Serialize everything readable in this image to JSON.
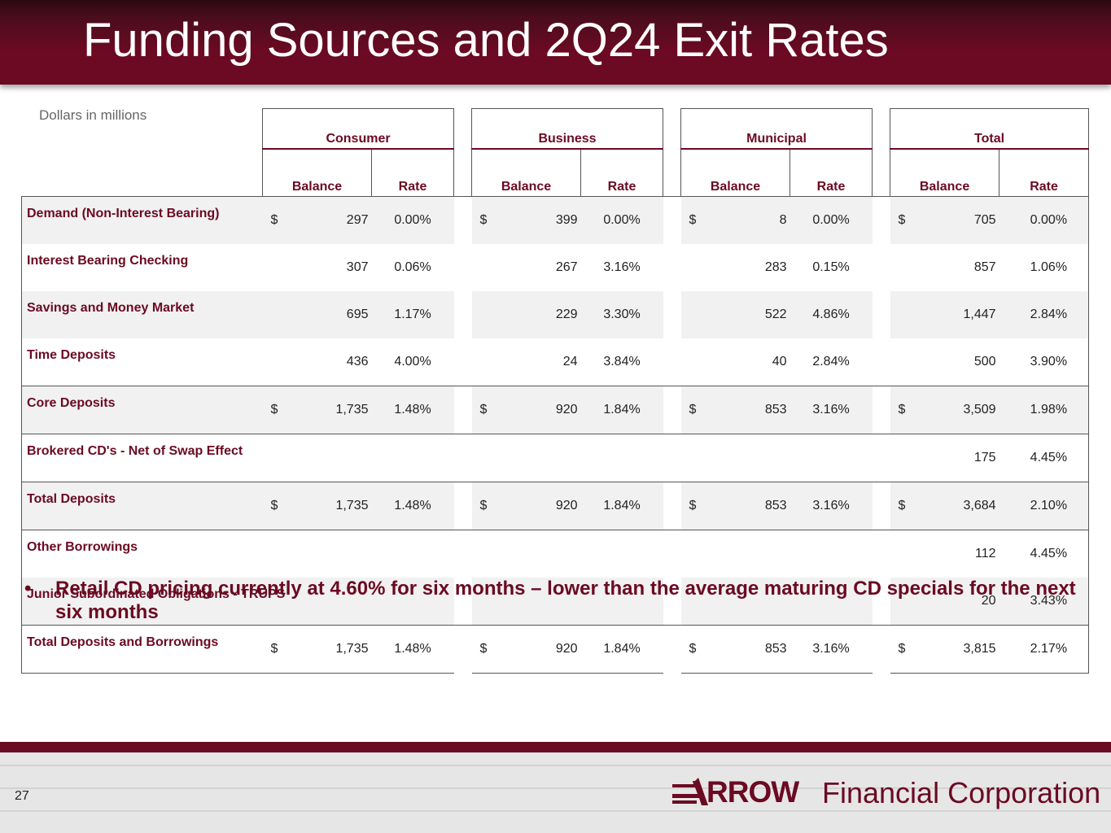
{
  "header": {
    "title": "Funding Sources and 2Q24 Exit Rates"
  },
  "table": {
    "units_note": "Dollars in millions",
    "groups": [
      "Consumer",
      "Business",
      "Municipal",
      "Total"
    ],
    "subheaders": {
      "balance": "Balance",
      "rate": "Rate"
    },
    "rows": [
      {
        "label": "Demand (Non-Interest Bearing)",
        "cells": [
          [
            "$",
            "297",
            "0.00%"
          ],
          [
            "$",
            "399",
            "0.00%"
          ],
          [
            "$",
            "8",
            "0.00%"
          ],
          [
            "$",
            "705",
            "0.00%"
          ]
        ]
      },
      {
        "label": "Interest Bearing Checking",
        "cells": [
          [
            "",
            "307",
            "0.06%"
          ],
          [
            "",
            "267",
            "3.16%"
          ],
          [
            "",
            "283",
            "0.15%"
          ],
          [
            "",
            "857",
            "1.06%"
          ]
        ]
      },
      {
        "label": "Savings and Money Market",
        "cells": [
          [
            "",
            "695",
            "1.17%"
          ],
          [
            "",
            "229",
            "3.30%"
          ],
          [
            "",
            "522",
            "4.86%"
          ],
          [
            "",
            "1,447",
            "2.84%"
          ]
        ]
      },
      {
        "label": "Time Deposits",
        "cells": [
          [
            "",
            "436",
            "4.00%"
          ],
          [
            "",
            "24",
            "3.84%"
          ],
          [
            "",
            "40",
            "2.84%"
          ],
          [
            "",
            "500",
            "3.90%"
          ]
        ]
      },
      {
        "label": "Core Deposits",
        "cells": [
          [
            "$",
            "1,735",
            "1.48%"
          ],
          [
            "$",
            "920",
            "1.84%"
          ],
          [
            "$",
            "853",
            "3.16%"
          ],
          [
            "$",
            "3,509",
            "1.98%"
          ]
        ]
      },
      {
        "label": "Brokered CD's - Net of Swap Effect",
        "cells": [
          [
            "",
            "",
            ""
          ],
          [
            "",
            "",
            ""
          ],
          [
            "",
            "",
            ""
          ],
          [
            "",
            "175",
            "4.45%"
          ]
        ]
      },
      {
        "label": "Total Deposits",
        "cells": [
          [
            "$",
            "1,735",
            "1.48%"
          ],
          [
            "$",
            "920",
            "1.84%"
          ],
          [
            "$",
            "853",
            "3.16%"
          ],
          [
            "$",
            "3,684",
            "2.10%"
          ]
        ]
      },
      {
        "label": "Other Borrowings",
        "cells": [
          [
            "",
            "",
            ""
          ],
          [
            "",
            "",
            ""
          ],
          [
            "",
            "",
            ""
          ],
          [
            "",
            "112",
            "4.45%"
          ]
        ]
      },
      {
        "label": "Junior Subordinated Obligations - TRUPS",
        "cells": [
          [
            "",
            "",
            ""
          ],
          [
            "",
            "",
            ""
          ],
          [
            "",
            "",
            ""
          ],
          [
            "",
            "20",
            "3.43%"
          ]
        ]
      },
      {
        "label": "Total Deposits and Borrowings",
        "cells": [
          [
            "$",
            "1,735",
            "1.48%"
          ],
          [
            "$",
            "920",
            "1.84%"
          ],
          [
            "$",
            "853",
            "3.16%"
          ],
          [
            "$",
            "3,815",
            "2.17%"
          ]
        ]
      }
    ]
  },
  "bullets": [
    "Retail CD pricing currently at 4.60% for six months – lower than the average maturing CD specials for the next six months"
  ],
  "bullet_symbol": "•",
  "footer": {
    "page_number": "27",
    "logo_word": "RROW",
    "logo_rest": "Financial Corporation"
  },
  "colors": {
    "brand": "#6b0a22",
    "row_shade": "#f1f1f1"
  }
}
